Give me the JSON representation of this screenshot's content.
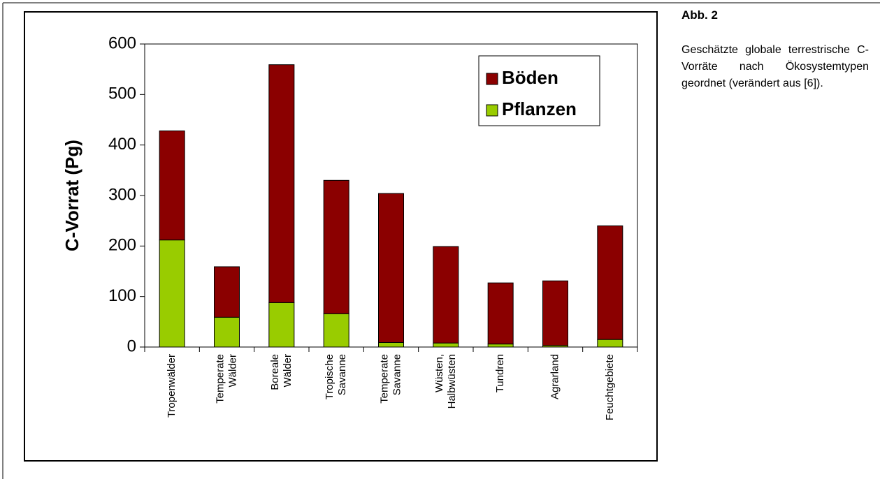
{
  "chart_data": {
    "type": "bar",
    "stacked": true,
    "y_label": "C-Vorrat (Pg)",
    "categories": [
      "Tropenwälder",
      "Temperate Wälder",
      "Boreale Wälder",
      "Tropische Savanne",
      "Temperate Savanne",
      "Wüsten, Halbwüsten",
      "Tundren",
      "Agrarland",
      "Feuchtgebiete"
    ],
    "series": [
      {
        "name": "Böden",
        "color": "#8b0000",
        "values": [
          216,
          100,
          471,
          264,
          295,
          191,
          121,
          128,
          225
        ]
      },
      {
        "name": "Pflanzen",
        "color": "#99cc00",
        "values": [
          212,
          59,
          88,
          66,
          9,
          8,
          6,
          3,
          15
        ]
      }
    ],
    "ylim": [
      0,
      600
    ],
    "yticks": [
      0,
      100,
      200,
      300,
      400,
      500,
      600
    ],
    "grid": false,
    "legend": "upper right"
  },
  "caption": {
    "title": "Abb. 2",
    "text": "Geschätzte globale terrestrische C-Vorräte nach Ökosystemtypen geordnet (verändert aus [6])."
  }
}
